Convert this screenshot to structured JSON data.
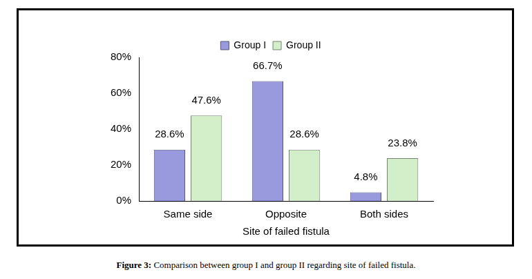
{
  "chart_data": {
    "type": "bar",
    "caption": "Figure 3: Comparison between group I and group II regarding site of failed fistula.",
    "x_label": "Site of failed fistula",
    "categories": [
      "Same side",
      "Opposite",
      "Both sides"
    ],
    "series": [
      {
        "name": "Group I",
        "color": "#9999dd",
        "values": [
          28.6,
          66.7,
          4.8
        ],
        "value_labels": [
          "28.6%",
          "66.7%",
          "4.8%"
        ]
      },
      {
        "name": "Group II",
        "color": "#d3efc9",
        "values": [
          47.6,
          28.6,
          23.8
        ],
        "value_labels": [
          "47.6%",
          "28.6%",
          "23.8%"
        ]
      }
    ],
    "ylim": [
      0,
      80
    ],
    "yticks": [
      {
        "value": 0,
        "label": "0%"
      },
      {
        "value": 20,
        "label": "20%"
      },
      {
        "value": 40,
        "label": "40%"
      },
      {
        "value": 60,
        "label": "60%"
      },
      {
        "value": 80,
        "label": "80%"
      }
    ],
    "grid": false,
    "legend": "top",
    "data_labels": true
  }
}
